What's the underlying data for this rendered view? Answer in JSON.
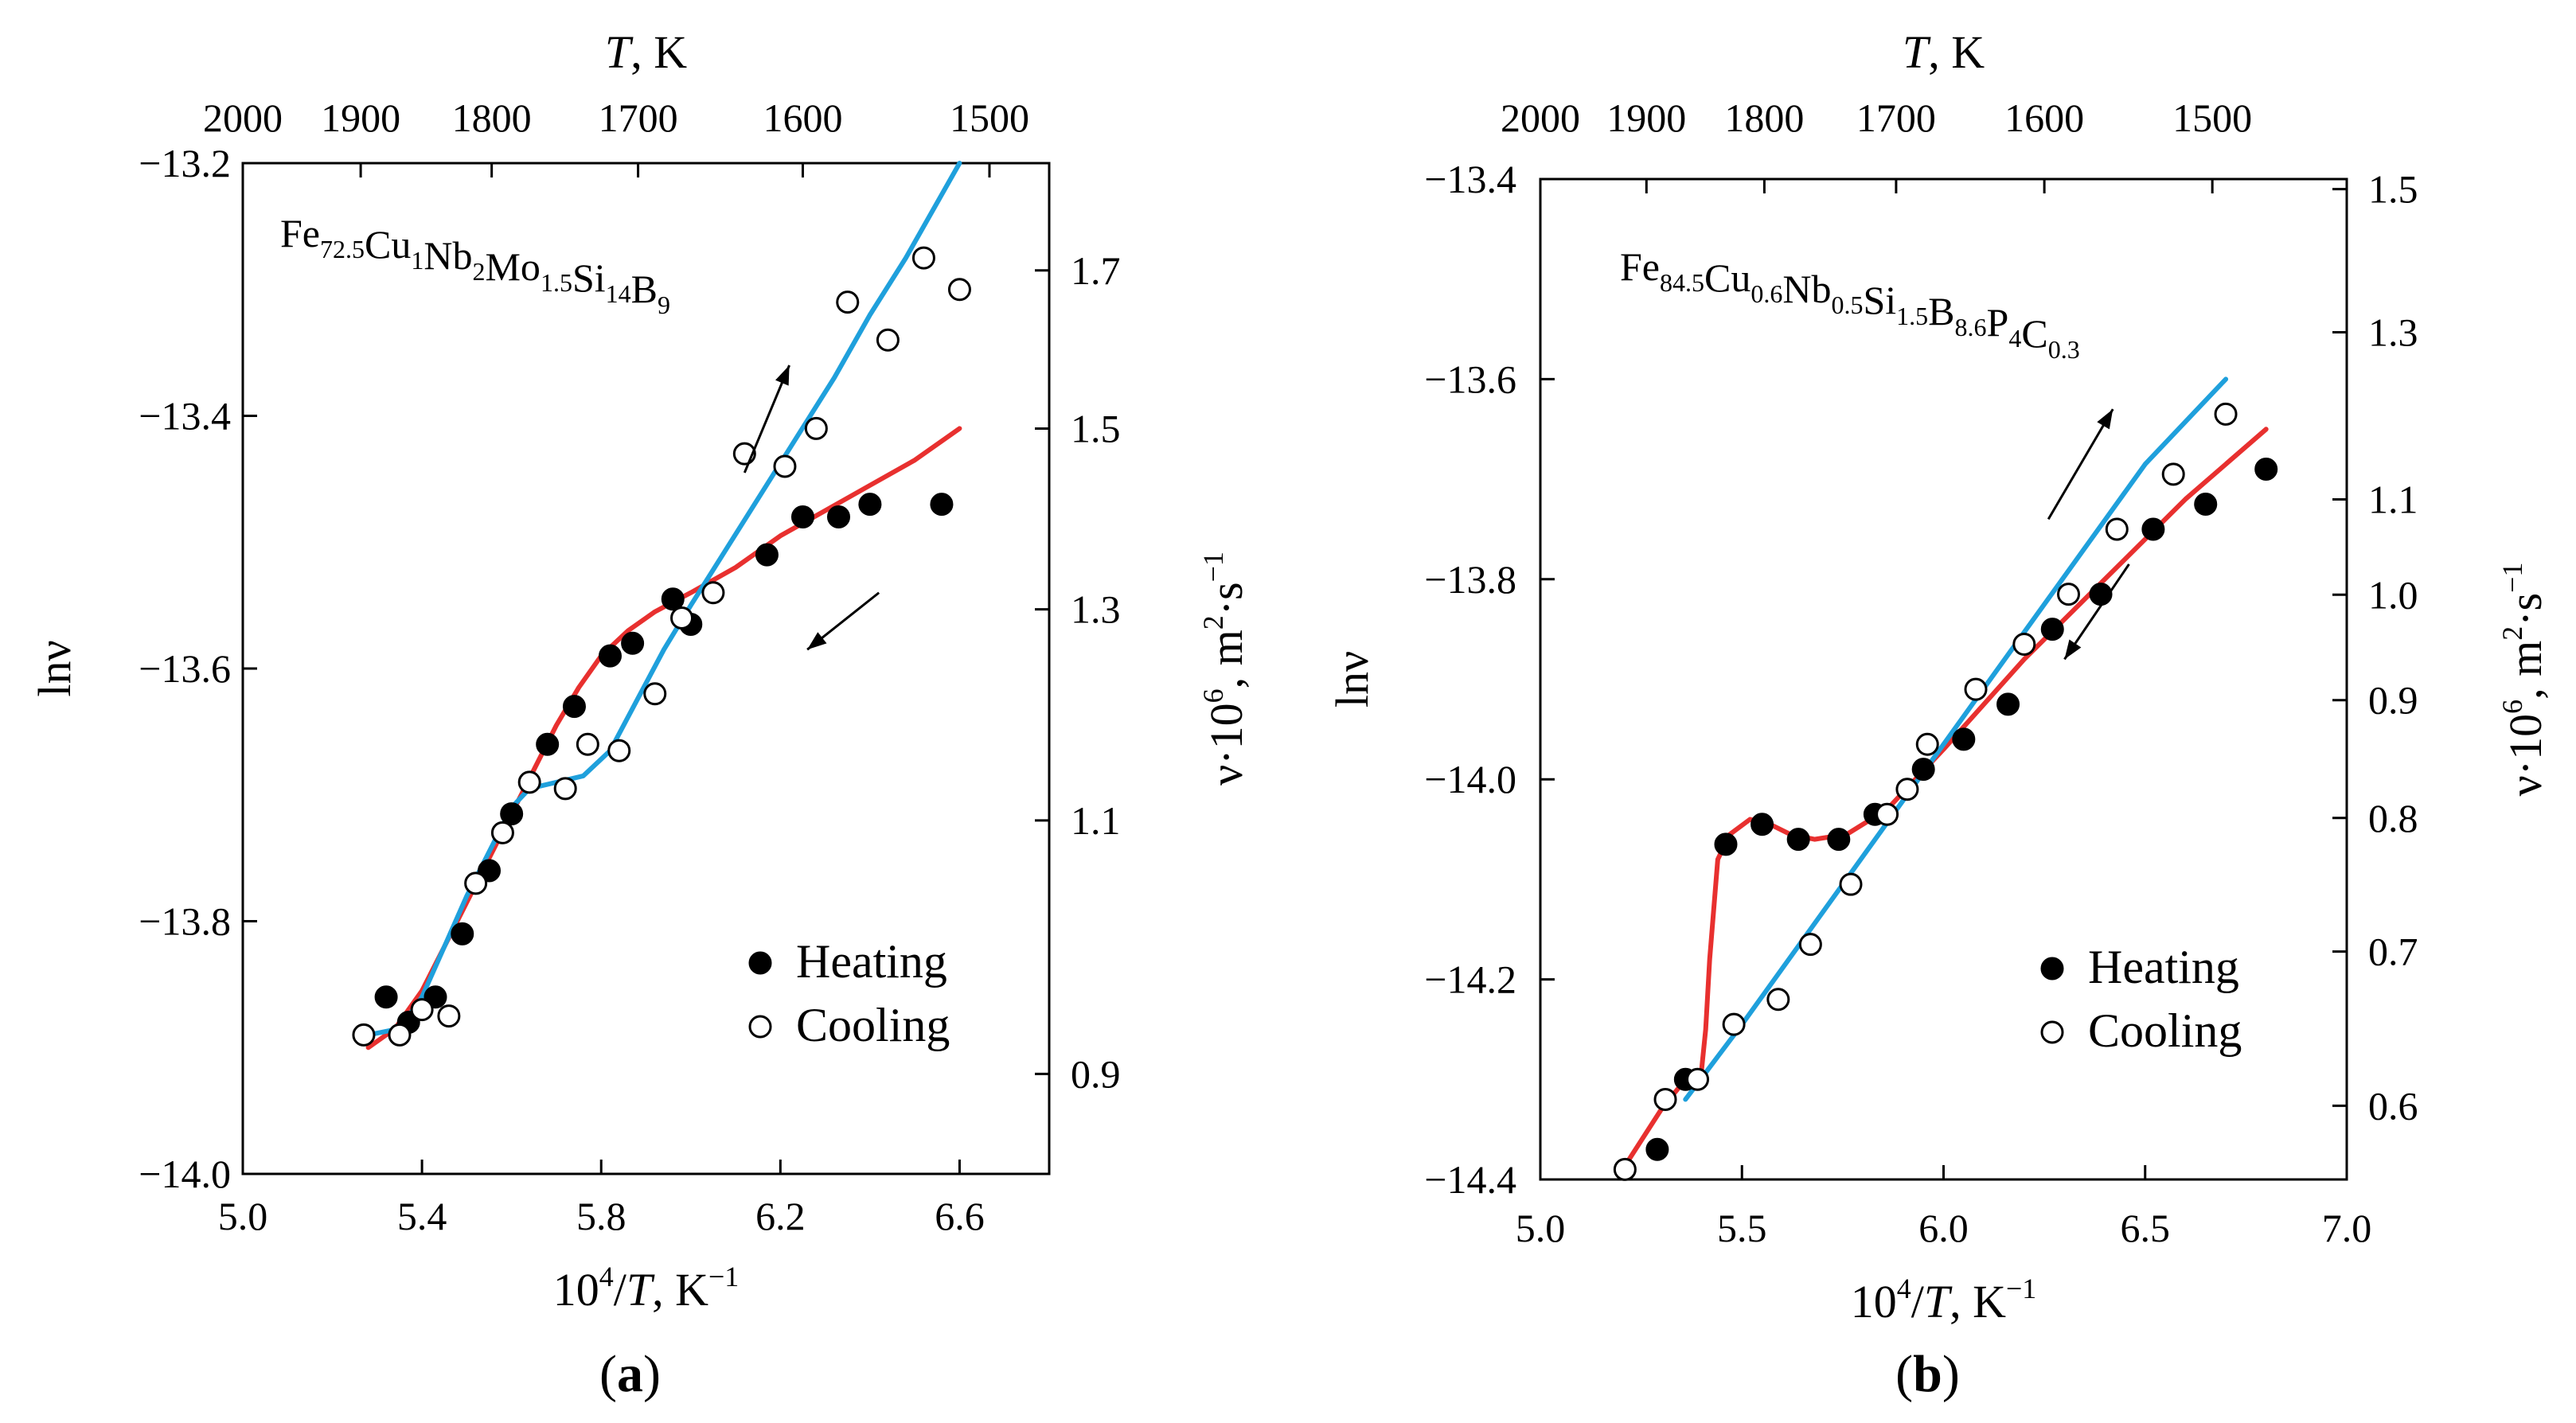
{
  "figure": {
    "panels": [
      {
        "id": "a",
        "label": "(a)",
        "composition": [
          [
            "Fe",
            ""
          ],
          [
            "72.5",
            ""
          ],
          [
            "Cu",
            ""
          ],
          [
            "1",
            ""
          ],
          [
            "Nb",
            ""
          ],
          [
            "2",
            ""
          ],
          [
            "Mo",
            ""
          ],
          [
            "1.5",
            ""
          ],
          [
            "Si",
            ""
          ],
          [
            "14",
            ""
          ],
          [
            "B",
            ""
          ],
          [
            "9",
            ""
          ]
        ],
        "composition_text": "Fe72.5Cu1Nb2Mo1.5Si14B9"
      },
      {
        "id": "b",
        "label": "(b)",
        "composition_text": "Fe84.5Cu0.6Nb0.5Si1.5B8.6P4C0.3"
      }
    ]
  },
  "chart_data": [
    {
      "type": "scatter",
      "panel": "a",
      "label": "(a)",
      "annotation": "Fe72.5Cu1Nb2Mo1.5Si14B9",
      "composition_parts": [
        {
          "el": "Fe",
          "sub": "72.5"
        },
        {
          "el": "Cu",
          "sub": "1"
        },
        {
          "el": "Nb",
          "sub": "2"
        },
        {
          "el": "Mo",
          "sub": "1.5"
        },
        {
          "el": "Si",
          "sub": "14"
        },
        {
          "el": "B",
          "sub": "9"
        }
      ],
      "xlabel": "10^4/T, K^-1",
      "ylabel": "lnν",
      "top_xlabel": "T, K",
      "right_ylabel": "ν·10^6, m^2·s^-1",
      "xlim": [
        5.0,
        6.8
      ],
      "ylim": [
        -14.0,
        -13.2
      ],
      "xticks": [
        5.0,
        5.4,
        5.8,
        6.2,
        6.6
      ],
      "xtick_labels": [
        "5.0",
        "5.4",
        "5.8",
        "6.2",
        "6.6"
      ],
      "yticks": [
        -14.0,
        -13.8,
        -13.6,
        -13.4,
        -13.2
      ],
      "ytick_labels": [
        "−14.0",
        "−13.8",
        "−13.6",
        "−13.4",
        "−13.2"
      ],
      "top_ticks": [
        2000,
        1900,
        1800,
        1700,
        1600,
        1500
      ],
      "top_tick_labels": [
        "2000",
        "1900",
        "1800",
        "1700",
        "1600",
        "1500"
      ],
      "right_ticks": [
        0.9,
        1.1,
        1.3,
        1.5,
        1.7
      ],
      "right_tick_labels": [
        "0.9",
        "1.1",
        "1.3",
        "1.5",
        "1.7"
      ],
      "legend": {
        "position": "bottom-right",
        "entries": [
          "Heating",
          "Cooling"
        ]
      },
      "series": [
        {
          "name": "Heating",
          "marker": "filled-circle",
          "x": [
            5.32,
            5.37,
            5.43,
            5.49,
            5.55,
            5.6,
            5.68,
            5.74,
            5.82,
            5.87,
            5.96,
            6.0,
            6.17,
            6.25,
            6.33,
            6.4,
            6.56
          ],
          "y": [
            -13.86,
            -13.88,
            -13.86,
            -13.81,
            -13.76,
            -13.715,
            -13.66,
            -13.63,
            -13.59,
            -13.58,
            -13.545,
            -13.565,
            -13.51,
            -13.48,
            -13.48,
            -13.47,
            -13.47
          ]
        },
        {
          "name": "Cooling",
          "marker": "open-circle",
          "x": [
            5.27,
            5.35,
            5.4,
            5.46,
            5.52,
            5.58,
            5.64,
            5.72,
            5.77,
            5.84,
            5.92,
            5.98,
            6.05,
            6.12,
            6.21,
            6.28,
            6.35,
            6.44,
            6.52,
            6.6
          ],
          "y": [
            -13.89,
            -13.89,
            -13.87,
            -13.875,
            -13.77,
            -13.73,
            -13.69,
            -13.695,
            -13.66,
            -13.665,
            -13.62,
            -13.56,
            -13.54,
            -13.43,
            -13.44,
            -13.41,
            -13.31,
            -13.34,
            -13.275,
            -13.3
          ]
        }
      ],
      "curves": [
        {
          "name": "heating fit",
          "color": "#e8302f",
          "x": [
            5.28,
            5.34,
            5.4,
            5.45,
            5.5,
            5.55,
            5.6,
            5.65,
            5.7,
            5.75,
            5.8,
            5.86,
            5.92,
            6.0,
            6.1,
            6.2,
            6.3,
            6.4,
            6.5,
            6.6
          ],
          "y": [
            -13.9,
            -13.885,
            -13.855,
            -13.82,
            -13.785,
            -13.75,
            -13.715,
            -13.68,
            -13.645,
            -13.615,
            -13.59,
            -13.57,
            -13.555,
            -13.54,
            -13.52,
            -13.495,
            -13.475,
            -13.455,
            -13.435,
            -13.41
          ]
        },
        {
          "name": "cooling fit",
          "color": "#1fa0dc",
          "x": [
            5.28,
            5.35,
            5.4,
            5.45,
            5.5,
            5.55,
            5.6,
            5.64,
            5.7,
            5.76,
            5.82,
            5.88,
            5.94,
            6.0,
            6.08,
            6.16,
            6.24,
            6.32,
            6.4,
            6.48,
            6.56,
            6.6
          ],
          "y": [
            -13.89,
            -13.885,
            -13.86,
            -13.82,
            -13.78,
            -13.745,
            -13.71,
            -13.695,
            -13.69,
            -13.685,
            -13.665,
            -13.625,
            -13.585,
            -13.55,
            -13.505,
            -13.46,
            -13.415,
            -13.37,
            -13.32,
            -13.275,
            -13.225,
            -13.2
          ]
        }
      ],
      "arrows": [
        {
          "from": [
            6.12,
            -13.445
          ],
          "to": [
            6.22,
            -13.36
          ]
        },
        {
          "from": [
            6.42,
            -13.54
          ],
          "to": [
            6.26,
            -13.585
          ]
        }
      ]
    },
    {
      "type": "scatter",
      "panel": "b",
      "label": "(b)",
      "annotation": "Fe84.5Cu0.6Nb0.5Si1.5B8.6P4C0.3",
      "composition_parts": [
        {
          "el": "Fe",
          "sub": "84.5"
        },
        {
          "el": "Cu",
          "sub": "0.6"
        },
        {
          "el": "Nb",
          "sub": "0.5"
        },
        {
          "el": "Si",
          "sub": "1.5"
        },
        {
          "el": "B",
          "sub": "8.6"
        },
        {
          "el": "P",
          "sub": "4"
        },
        {
          "el": "C",
          "sub": "0.3"
        }
      ],
      "xlabel": "10^4/T, K^-1",
      "ylabel": "lnν",
      "top_xlabel": "T, K",
      "right_ylabel": "ν·10^6, m^2·s^-1",
      "xlim": [
        5.0,
        7.0
      ],
      "ylim": [
        -14.4,
        -13.4
      ],
      "xticks": [
        5.0,
        5.5,
        6.0,
        6.5,
        7.0
      ],
      "xtick_labels": [
        "5.0",
        "5.5",
        "6.0",
        "6.5",
        "7.0"
      ],
      "yticks": [
        -14.4,
        -14.2,
        -14.0,
        -13.8,
        -13.6,
        -13.4
      ],
      "ytick_labels": [
        "−14.4",
        "−14.2",
        "−14.0",
        "−13.8",
        "−13.6",
        "−13.4"
      ],
      "top_ticks": [
        2000,
        1900,
        1800,
        1700,
        1600,
        1500
      ],
      "top_tick_labels": [
        "2000",
        "1900",
        "1800",
        "1700",
        "1600",
        "1500"
      ],
      "right_ticks": [
        0.6,
        0.7,
        0.8,
        0.9,
        1.0,
        1.1,
        1.3,
        1.5
      ],
      "right_tick_labels": [
        "0.6",
        "0.7",
        "0.8",
        "0.9",
        "1.0",
        "1.1",
        "1.3",
        "1.5"
      ],
      "legend": {
        "position": "bottom-right",
        "entries": [
          "Heating",
          "Cooling"
        ]
      },
      "series": [
        {
          "name": "Heating",
          "marker": "filled-circle",
          "x": [
            5.29,
            5.36,
            5.46,
            5.55,
            5.64,
            5.74,
            5.83,
            5.95,
            6.05,
            6.16,
            6.27,
            6.39,
            6.52,
            6.65,
            6.8
          ],
          "y": [
            -14.37,
            -14.3,
            -14.065,
            -14.045,
            -14.06,
            -14.06,
            -14.035,
            -13.99,
            -13.96,
            -13.925,
            -13.85,
            -13.815,
            -13.75,
            -13.725,
            -13.69
          ]
        },
        {
          "name": "Cooling",
          "marker": "open-circle",
          "x": [
            5.21,
            5.31,
            5.39,
            5.48,
            5.59,
            5.67,
            5.77,
            5.86,
            5.91,
            5.96,
            6.08,
            6.2,
            6.31,
            6.43,
            6.57,
            6.7
          ],
          "y": [
            -14.39,
            -14.32,
            -14.3,
            -14.245,
            -14.22,
            -14.165,
            -14.105,
            -14.035,
            -14.01,
            -13.965,
            -13.91,
            -13.865,
            -13.815,
            -13.75,
            -13.695,
            -13.635
          ]
        }
      ],
      "curves": [
        {
          "name": "heating fit",
          "color": "#e8302f",
          "x": [
            5.22,
            5.3,
            5.36,
            5.4,
            5.41,
            5.42,
            5.44,
            5.47,
            5.52,
            5.57,
            5.62,
            5.68,
            5.76,
            5.86,
            6.0,
            6.2,
            6.4,
            6.6,
            6.8
          ],
          "y": [
            -14.38,
            -14.33,
            -14.3,
            -14.29,
            -14.25,
            -14.18,
            -14.08,
            -14.055,
            -14.04,
            -14.045,
            -14.055,
            -14.06,
            -14.055,
            -14.03,
            -13.97,
            -13.88,
            -13.8,
            -13.72,
            -13.65
          ]
        },
        {
          "name": "cooling fit",
          "color": "#1fa0dc",
          "x": [
            5.36,
            5.5,
            6.0,
            6.5,
            6.7
          ],
          "y": [
            -14.32,
            -14.245,
            -13.965,
            -13.685,
            -13.6
          ]
        }
      ],
      "arrows": [
        {
          "from": [
            6.26,
            -13.74
          ],
          "to": [
            6.42,
            -13.63
          ]
        },
        {
          "from": [
            6.46,
            -13.785
          ],
          "to": [
            6.3,
            -13.88
          ]
        }
      ]
    }
  ]
}
